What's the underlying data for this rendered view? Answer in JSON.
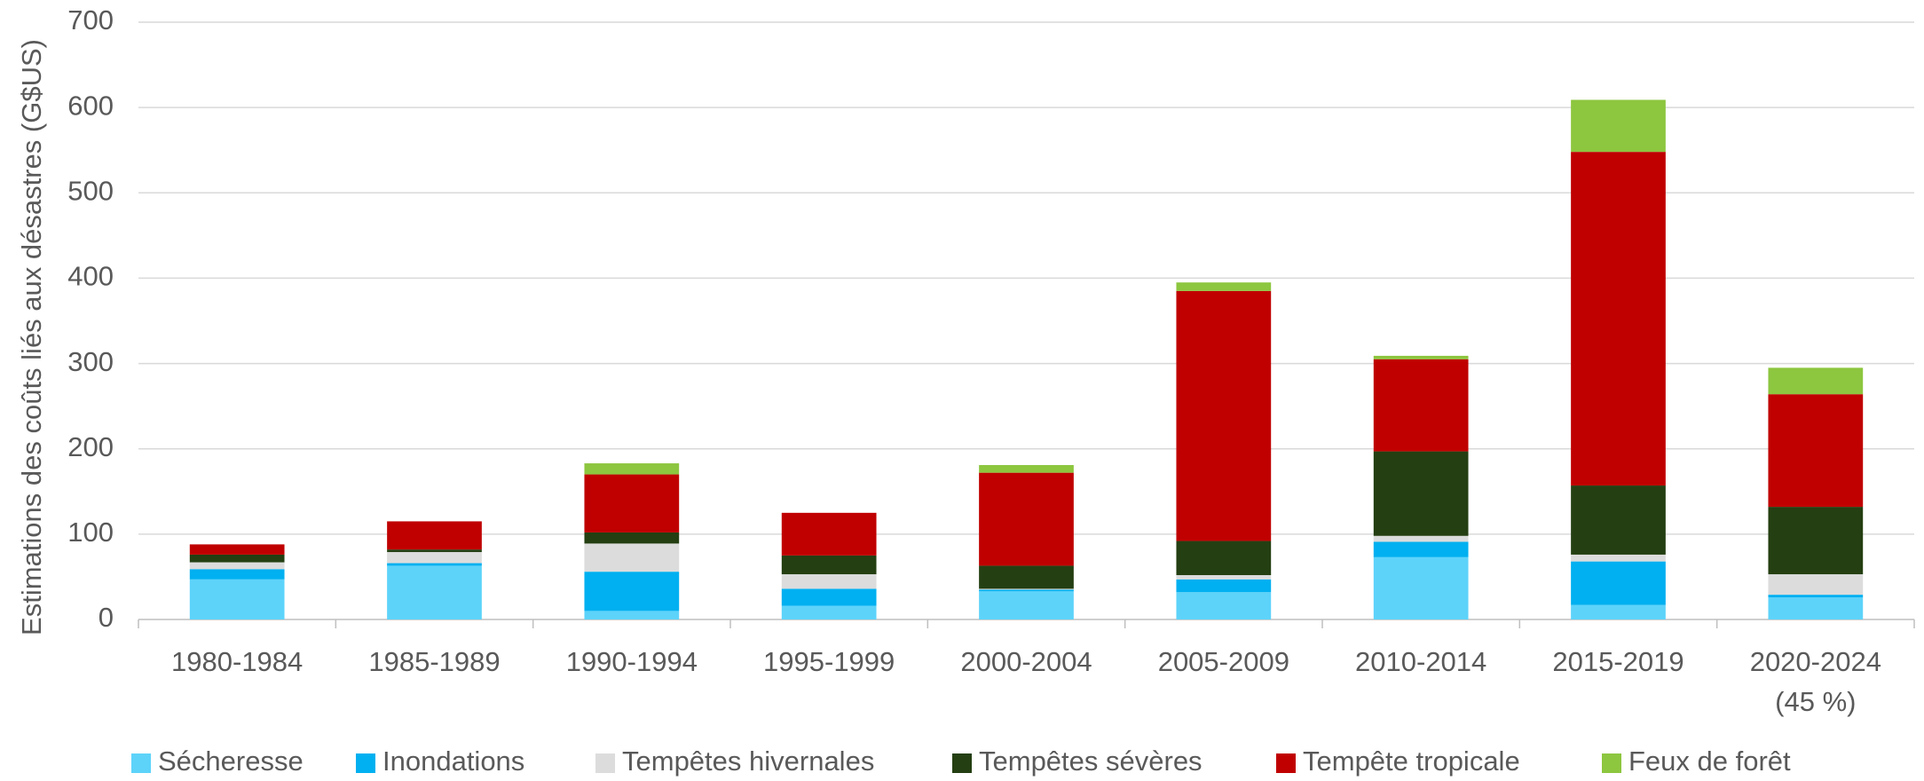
{
  "chart_data": {
    "type": "stacked_bar",
    "y_label": "Estimations des coûts liés aux désastres (G$US)",
    "categories": [
      "1980-1984",
      "1985-1989",
      "1990-1994",
      "1995-1999",
      "2000-2004",
      "2005-2009",
      "2010-2014",
      "2015-2019",
      "2020-2024\n(45 %)"
    ],
    "series": [
      {
        "name": "Sécheresse",
        "color": "#5dd3fa",
        "values": [
          47,
          63,
          10,
          16,
          33,
          32,
          73,
          17,
          26
        ]
      },
      {
        "name": "Inondations",
        "color": "#00b0f0",
        "values": [
          12,
          3,
          46,
          20,
          2,
          15,
          18,
          51,
          3
        ]
      },
      {
        "name": "Tempêtes hivernales",
        "color": "#dcdcdc",
        "values": [
          8,
          13,
          33,
          17,
          1,
          5,
          7,
          8,
          24
        ]
      },
      {
        "name": "Tempêtes sévères",
        "color": "#243f12",
        "values": [
          9,
          3,
          13,
          22,
          27,
          40,
          99,
          81,
          79
        ]
      },
      {
        "name": "Tempête tropicale",
        "color": "#c00000",
        "values": [
          12,
          33,
          68,
          50,
          109,
          293,
          108,
          391,
          132
        ]
      },
      {
        "name": "Feux de forêt",
        "color": "#8dc63f",
        "values": [
          0,
          0,
          13,
          0,
          9,
          10,
          4,
          61,
          31
        ]
      }
    ],
    "ylim": [
      0,
      700
    ],
    "yticks": [
      0,
      100,
      200,
      300,
      400,
      500,
      600,
      700
    ],
    "grid": true,
    "legend": "bottom"
  }
}
